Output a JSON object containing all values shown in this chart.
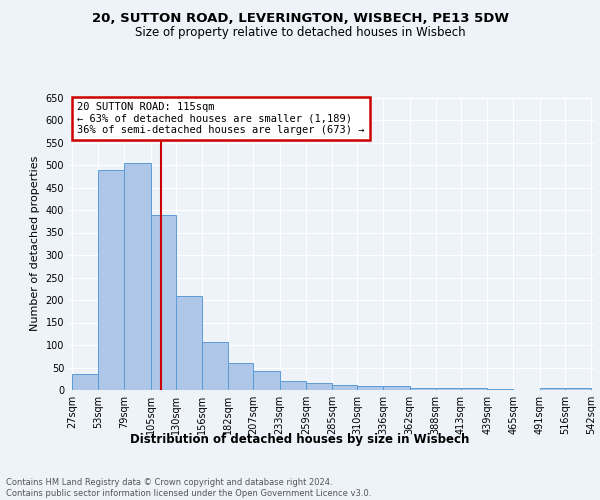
{
  "title_line1": "20, SUTTON ROAD, LEVERINGTON, WISBECH, PE13 5DW",
  "title_line2": "Size of property relative to detached houses in Wisbech",
  "xlabel": "Distribution of detached houses by size in Wisbech",
  "ylabel": "Number of detached properties",
  "footer": "Contains HM Land Registry data © Crown copyright and database right 2024.\nContains public sector information licensed under the Open Government Licence v3.0.",
  "annotation_line1": "20 SUTTON ROAD: 115sqm",
  "annotation_line2": "← 63% of detached houses are smaller (1,189)",
  "annotation_line3": "36% of semi-detached houses are larger (673) →",
  "bar_left_edges": [
    27,
    53,
    79,
    105,
    130,
    156,
    182,
    207,
    233,
    259,
    285,
    310,
    336,
    362,
    388,
    413,
    439,
    465,
    491,
    516
  ],
  "bar_widths": [
    26,
    26,
    26,
    25,
    26,
    26,
    25,
    26,
    26,
    26,
    25,
    26,
    26,
    26,
    25,
    26,
    26,
    26,
    25,
    26
  ],
  "bar_heights": [
    35,
    490,
    505,
    390,
    210,
    107,
    60,
    42,
    21,
    15,
    12,
    10,
    9,
    4,
    4,
    4,
    2,
    1,
    5,
    4
  ],
  "tick_labels": [
    "27sqm",
    "53sqm",
    "79sqm",
    "105sqm",
    "130sqm",
    "156sqm",
    "182sqm",
    "207sqm",
    "233sqm",
    "259sqm",
    "285sqm",
    "310sqm",
    "336sqm",
    "362sqm",
    "388sqm",
    "413sqm",
    "439sqm",
    "465sqm",
    "491sqm",
    "516sqm",
    "542sqm"
  ],
  "bar_color": "#aec6e8",
  "bar_edge_color": "#5b9bd5",
  "vline_x": 115,
  "vline_color": "#cc0000",
  "annotation_box_color": "#cc0000",
  "ylim": [
    0,
    650
  ],
  "yticks": [
    0,
    50,
    100,
    150,
    200,
    250,
    300,
    350,
    400,
    450,
    500,
    550,
    600,
    650
  ],
  "bg_color": "#eef3fa",
  "plot_bg_color": "#eef3fa",
  "grid_color": "#ffffff",
  "title_fontsize": 9.5,
  "subtitle_fontsize": 8.5,
  "axis_label_fontsize": 8.5,
  "tick_fontsize": 7,
  "annotation_fontsize": 7.5,
  "footer_fontsize": 6,
  "ylabel_fontsize": 8
}
